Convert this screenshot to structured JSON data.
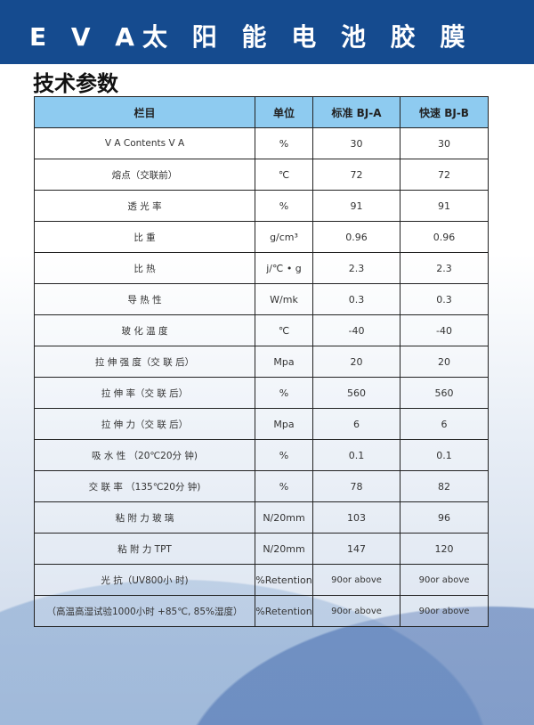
{
  "title": "E V A太 阳 能 电 池 胶 膜",
  "subtitle": "技术参数",
  "colors": {
    "band": "#154b8f",
    "header": "#8ecbf0"
  },
  "table": {
    "headers": [
      "栏目",
      "单位",
      "标准 BJ-A",
      "快速 BJ-B"
    ],
    "rows": [
      [
        "V A Contents V A",
        "%",
        "30",
        "30"
      ],
      [
        "熔点（交联前）",
        "℃",
        "72",
        "72"
      ],
      [
        "透 光 率",
        "%",
        "91",
        "91"
      ],
      [
        "比 重",
        "g/cm³",
        "0.96",
        "0.96"
      ],
      [
        "比 热",
        "j/℃ • g",
        "2.3",
        "2.3"
      ],
      [
        "导 热 性",
        "W/mk",
        "0.3",
        "0.3"
      ],
      [
        "玻 化 温 度",
        "℃",
        "-40",
        "-40"
      ],
      [
        "拉 伸 强 度（交 联 后）",
        "Mpa",
        "20",
        "20"
      ],
      [
        "拉 伸 率（交 联 后）",
        "%",
        "560",
        "560"
      ],
      [
        "拉 伸 力（交 联 后）",
        "Mpa",
        "6",
        "6"
      ],
      [
        "吸 水 性 （20℃20分 钟)",
        "%",
        "0.1",
        "0.1"
      ],
      [
        "交 联 率 （135℃20分 钟)",
        "%",
        "78",
        "82"
      ],
      [
        "粘 附 力 玻 璃",
        "N/20mm",
        "103",
        "96"
      ],
      [
        "粘 附 力 TPT",
        "N/20mm",
        "147",
        "120"
      ],
      [
        "光 抗（UV800小 时)",
        "%Retention",
        "90or above",
        "90or above"
      ],
      [
        "（高温高湿试验1000小时 +85℃, 85%湿度）",
        "%Retention",
        "90or above",
        "90or above"
      ]
    ]
  }
}
